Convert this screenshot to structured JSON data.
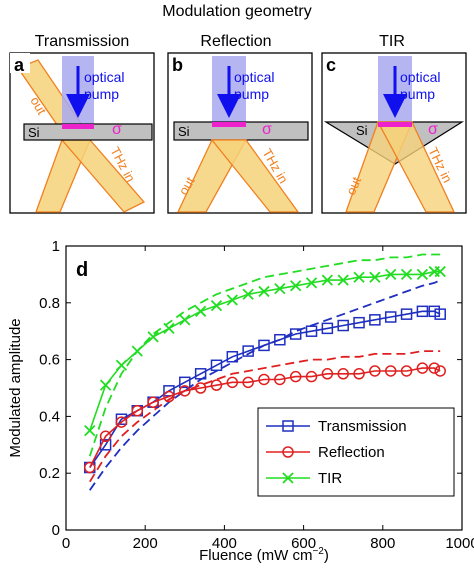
{
  "figure_title": "Modulation geometry",
  "panels": [
    {
      "letter": "a",
      "title": "Transmission",
      "material": "Si",
      "optical_label_1": "optical",
      "optical_label_2": "pump",
      "sigma": "σ",
      "thz_out": "out",
      "thz_in": "THz in"
    },
    {
      "letter": "b",
      "title": "Reflection",
      "material": "Si",
      "optical_label_1": "optical",
      "optical_label_2": "pump",
      "sigma": "σ",
      "thz_out": "out",
      "thz_in": "THz in"
    },
    {
      "letter": "c",
      "title": "TIR",
      "material": "Si",
      "optical_label_1": "optical",
      "optical_label_2": "pump",
      "sigma": "σ",
      "thz_out": "out",
      "thz_in": "THz in"
    }
  ],
  "colors": {
    "transmission": "#1f2fbf",
    "reflection": "#e02020",
    "tir": "#22dd22",
    "pump_fill": "#a8a8f0",
    "pump_arrow": "#1010ee",
    "thz_fill": "#f6d27a",
    "thz_stroke": "#f08020",
    "si_fill": "#c0c0c0",
    "sigma_pink": "#ee22cc"
  },
  "chart_data": {
    "type": "line",
    "panel_letter": "d",
    "xlabel_main": "Fluence (mW cm",
    "xlabel_exp": "−2",
    "xlabel_close": ")",
    "ylabel": "Modulated amplitude",
    "xlim": [
      0,
      1000
    ],
    "ylim": [
      0,
      1
    ],
    "xticks": [
      "0",
      "200",
      "400",
      "600",
      "800",
      "1000"
    ],
    "yticks": [
      "0",
      "0.2",
      "0.4",
      "0.6",
      "0.8",
      "1"
    ],
    "legend_position": "bottom-right",
    "x": [
      60,
      100,
      140,
      180,
      220,
      260,
      300,
      340,
      380,
      420,
      460,
      500,
      540,
      580,
      620,
      660,
      700,
      740,
      780,
      820,
      860,
      900,
      930,
      945
    ],
    "series": [
      {
        "name": "Transmission",
        "marker": "square",
        "values": [
          0.22,
          0.3,
          0.39,
          0.42,
          0.45,
          0.49,
          0.52,
          0.55,
          0.58,
          0.61,
          0.63,
          0.65,
          0.67,
          0.69,
          0.7,
          0.71,
          0.72,
          0.73,
          0.74,
          0.75,
          0.76,
          0.77,
          0.77,
          0.76
        ],
        "fit_values": [
          0.14,
          0.22,
          0.29,
          0.35,
          0.4,
          0.45,
          0.49,
          0.53,
          0.56,
          0.59,
          0.62,
          0.65,
          0.67,
          0.7,
          0.72,
          0.74,
          0.76,
          0.78,
          0.8,
          0.82,
          0.84,
          0.86,
          0.87,
          0.88
        ]
      },
      {
        "name": "Reflection",
        "marker": "circle",
        "values": [
          0.22,
          0.33,
          0.38,
          0.42,
          0.45,
          0.47,
          0.49,
          0.5,
          0.51,
          0.52,
          0.52,
          0.53,
          0.53,
          0.54,
          0.54,
          0.55,
          0.55,
          0.55,
          0.56,
          0.56,
          0.56,
          0.57,
          0.57,
          0.56
        ],
        "fit_values": [
          0.17,
          0.26,
          0.33,
          0.38,
          0.42,
          0.46,
          0.49,
          0.51,
          0.53,
          0.55,
          0.56,
          0.57,
          0.58,
          0.59,
          0.6,
          0.6,
          0.61,
          0.61,
          0.62,
          0.62,
          0.62,
          0.63,
          0.63,
          0.63
        ]
      },
      {
        "name": "TIR",
        "marker": "x",
        "values": [
          0.35,
          0.51,
          0.58,
          0.63,
          0.68,
          0.71,
          0.74,
          0.77,
          0.79,
          0.81,
          0.83,
          0.84,
          0.85,
          0.86,
          0.87,
          0.88,
          0.88,
          0.89,
          0.89,
          0.9,
          0.9,
          0.9,
          0.91,
          0.91
        ],
        "fit_values": [
          0.26,
          0.43,
          0.55,
          0.63,
          0.69,
          0.73,
          0.77,
          0.8,
          0.83,
          0.85,
          0.87,
          0.89,
          0.9,
          0.91,
          0.92,
          0.93,
          0.94,
          0.95,
          0.95,
          0.96,
          0.96,
          0.97,
          0.97,
          0.97
        ]
      }
    ]
  }
}
